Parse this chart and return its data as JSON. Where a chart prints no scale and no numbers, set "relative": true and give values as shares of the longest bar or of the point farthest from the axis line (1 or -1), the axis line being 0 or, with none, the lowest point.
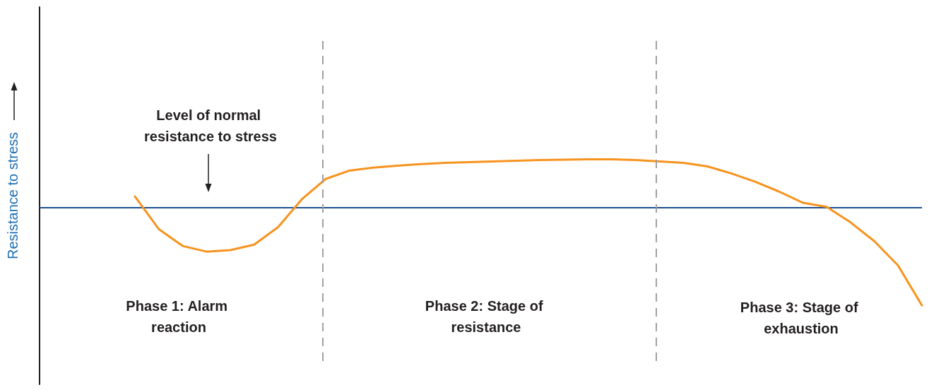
{
  "chart_data": {
    "type": "line",
    "relative": true,
    "ylabel": "Resistance to stress",
    "grid": false,
    "marker": "none",
    "line_style": "solid",
    "categories": [
      null,
      null,
      null,
      null,
      null,
      null,
      null,
      null,
      null,
      null,
      null,
      null,
      null,
      null,
      null,
      null,
      null,
      null,
      null,
      null,
      null,
      null,
      null,
      null,
      null,
      null,
      null,
      null,
      null,
      null,
      null,
      null,
      null,
      null,
      null,
      null,
      null,
      null
    ],
    "series": [
      {
        "color": "#f7931e",
        "values": [
          null,
          null,
          null,
          null,
          0.746,
          0.522,
          0.407,
          0.368,
          0.378,
          0.416,
          0.536,
          0.727,
          0.866,
          0.923,
          0.943,
          0.957,
          0.967,
          0.976,
          0.981,
          0.986,
          0.99,
          0.995,
          0.998,
          1,
          1,
          0.995,
          0.986,
          0.976,
          0.952,
          0.904,
          0.847,
          0.78,
          0.703,
          0.675,
          0.569,
          0.44,
          0.273,
          0
        ]
      }
    ],
    "ref_lines": [
      {
        "axis": "y",
        "value": 0.665,
        "color": "#1d4f91",
        "line_style": "solid"
      }
    ],
    "annotations": [
      "Level of normal resistance to stress",
      "Phase 1: Alarm reaction",
      "Phase 2: Stage of resistance",
      "Phase 3: Stage of exhaustion"
    ]
  }
}
